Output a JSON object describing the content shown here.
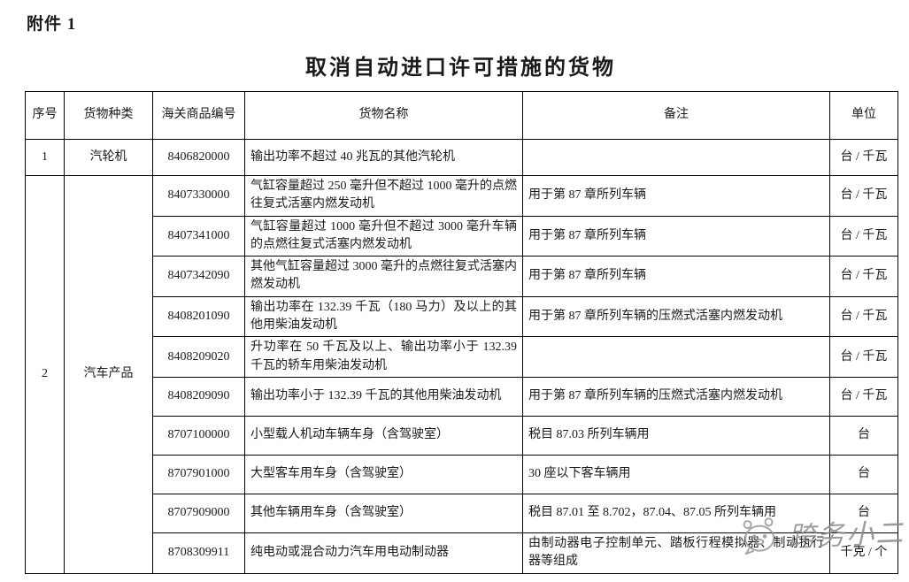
{
  "page": {
    "attachment_label": "附件 1",
    "title": "取消自动进口许可措施的货物"
  },
  "table": {
    "headers": [
      "序号",
      "货物种类",
      "海关商品编号",
      "货物名称",
      "备注",
      "单位"
    ],
    "groups": [
      {
        "seq": "1",
        "category": "汽轮机",
        "items": [
          {
            "code": "8406820000",
            "name": "输出功率不超过 40 兆瓦的其他汽轮机",
            "remark": "",
            "unit": "台 / 千瓦"
          }
        ]
      },
      {
        "seq": "2",
        "category": "汽车产品",
        "items": [
          {
            "code": "8407330000",
            "name": "气缸容量超过 250 毫升但不超过 1000 毫升的点燃往复式活塞内燃发动机",
            "remark": "用于第 87 章所列车辆",
            "unit": "台 / 千瓦"
          },
          {
            "code": "8407341000",
            "name": "气缸容量超过 1000 毫升但不超过 3000 毫升车辆的点燃往复式活塞内燃发动机",
            "remark": "用于第 87 章所列车辆",
            "unit": "台 / 千瓦"
          },
          {
            "code": "8407342090",
            "name": "其他气缸容量超过 3000 毫升的点燃往复式活塞内燃发动机",
            "remark": "用于第 87 章所列车辆",
            "unit": "台 / 千瓦"
          },
          {
            "code": "8408201090",
            "name": "输出功率在 132.39 千瓦（180 马力）及以上的其他用柴油发动机",
            "remark": "用于第 87 章所列车辆的压燃式活塞内燃发动机",
            "unit": "台 / 千瓦"
          },
          {
            "code": "8408209020",
            "name": "升功率在 50 千瓦及以上、输出功率小于 132.39 千瓦的轿车用柴油发动机",
            "remark": "",
            "unit": "台 / 千瓦"
          },
          {
            "code": "8408209090",
            "name": "输出功率小于 132.39 千瓦的其他用柴油发动机",
            "remark": "用于第 87 章所列车辆的压燃式活塞内燃发动机",
            "unit": "台 / 千瓦"
          },
          {
            "code": "8707100000",
            "name": "小型载人机动车辆车身（含驾驶室）",
            "remark": "税目 87.03 所列车辆用",
            "unit": "台"
          },
          {
            "code": "8707901000",
            "name": "大型客车用车身（含驾驶室）",
            "remark": "30 座以下客车辆用",
            "unit": "台"
          },
          {
            "code": "8707909000",
            "name": "其他车辆用车身（含驾驶室）",
            "remark": "税目 87.01 至 8.702，87.04、87.05 所列车辆用",
            "unit": "台"
          },
          {
            "code": "8708309911",
            "name": "纯电动或混合动力汽车用电动制动器",
            "remark": "由制动器电子控制单元、踏板行程模拟器、制动执行器等组成",
            "unit": "千克 / 个"
          }
        ]
      }
    ]
  },
  "watermark": {
    "text": "跨务小二",
    "icon": "chat-animal-logo",
    "color": "#8d8d8d"
  },
  "colors": {
    "page_background": "#ffffff",
    "text": "#1a1a1a",
    "table_border": "#000000"
  }
}
